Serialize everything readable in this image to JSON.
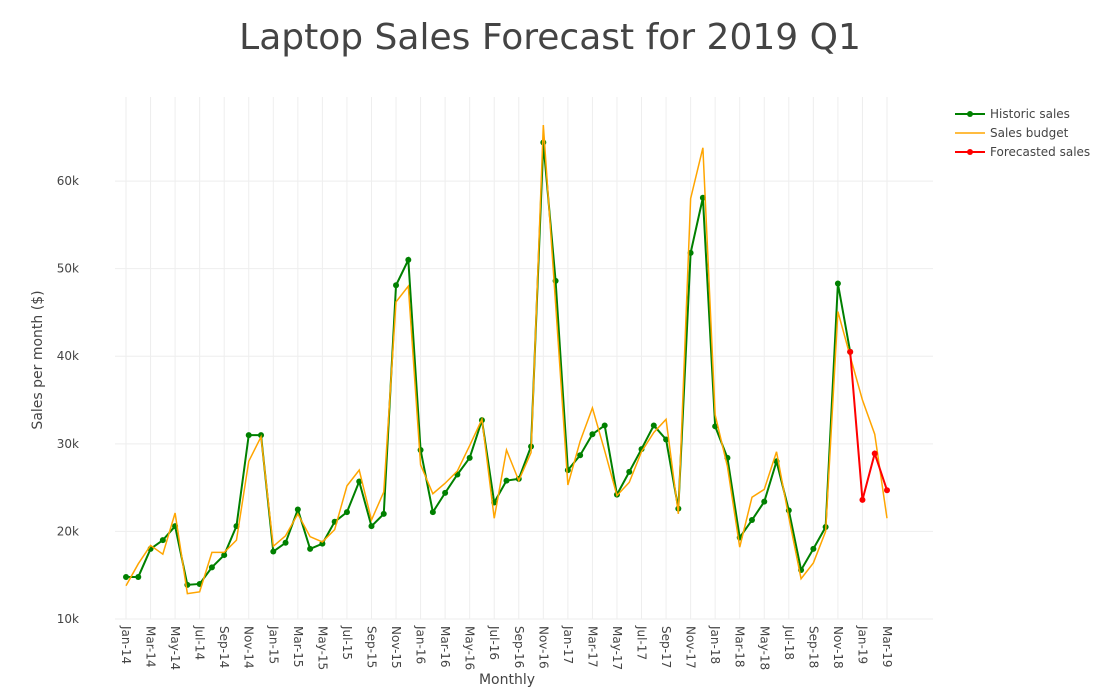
{
  "chart_data": {
    "type": "line",
    "title": "Laptop Sales Forecast for 2019 Q1",
    "x_label": "Monthly",
    "y_label": "Sales per month ($)",
    "categories": [
      "Jan-14",
      null,
      "Mar-14",
      null,
      "May-14",
      null,
      "Jul-14",
      null,
      "Sep-14",
      null,
      "Nov-14",
      null,
      "Jan-15",
      null,
      "Mar-15",
      null,
      "May-15",
      null,
      "Jul-15",
      null,
      "Sep-15",
      null,
      "Nov-15",
      null,
      "Jan-16",
      null,
      "Mar-16",
      null,
      "May-16",
      null,
      "Jul-16",
      null,
      "Sep-16",
      null,
      "Nov-16",
      null,
      "Jan-17",
      null,
      "Mar-17",
      null,
      "May-17",
      null,
      "Jul-17",
      null,
      "Sep-17",
      null,
      "Nov-17",
      null,
      "Jan-18",
      null,
      "Mar-18",
      null,
      "May-18",
      null,
      "Jul-18",
      null,
      "Sep-18",
      null,
      "Nov-18",
      null,
      "Jan-19",
      null,
      "Mar-19"
    ],
    "series": [
      {
        "name": "Historic sales",
        "color": "#008000",
        "markers": true,
        "values": [
          14800,
          14800,
          18000,
          19000,
          20600,
          13900,
          14000,
          15900,
          17300,
          20600,
          31000,
          31000,
          17700,
          18700,
          22500,
          18000,
          18600,
          21100,
          22200,
          25700,
          20600,
          22000,
          48100,
          51000,
          29300,
          22200,
          24400,
          26500,
          28400,
          32700,
          23300,
          25800,
          26000,
          29700,
          64400,
          48600,
          27000,
          28700,
          31100,
          32100,
          24200,
          26800,
          29400,
          32100,
          30500,
          22600,
          51800,
          58100,
          32000,
          28400,
          19300,
          21300,
          23400,
          28000,
          22400,
          15600,
          18000,
          20500,
          48300,
          40500,
          null,
          null,
          null
        ]
      },
      {
        "name": "Sales budget",
        "color": "#ffa500",
        "markers": false,
        "values": [
          13800,
          16300,
          18400,
          17400,
          22100,
          12900,
          13100,
          17600,
          17600,
          19000,
          28000,
          30800,
          18300,
          19500,
          22000,
          19400,
          18800,
          20200,
          25200,
          27000,
          21300,
          24500,
          46200,
          48000,
          27600,
          24300,
          25500,
          26900,
          29800,
          32800,
          21500,
          29300,
          25800,
          29000,
          66400,
          46000,
          25300,
          30300,
          34100,
          29200,
          24100,
          25600,
          29100,
          31300,
          32800,
          22000,
          58000,
          63800,
          33300,
          27400,
          18200,
          23900,
          24800,
          29100,
          21600,
          14600,
          16400,
          20000,
          45100,
          40000,
          35000,
          31100,
          21500
        ]
      },
      {
        "name": "Forecasted sales",
        "color": "#ff0000",
        "markers": true,
        "values": [
          null,
          null,
          null,
          null,
          null,
          null,
          null,
          null,
          null,
          null,
          null,
          null,
          null,
          null,
          null,
          null,
          null,
          null,
          null,
          null,
          null,
          null,
          null,
          null,
          null,
          null,
          null,
          null,
          null,
          null,
          null,
          null,
          null,
          null,
          null,
          null,
          null,
          null,
          null,
          null,
          null,
          null,
          null,
          null,
          null,
          null,
          null,
          null,
          null,
          null,
          null,
          null,
          null,
          null,
          null,
          null,
          null,
          null,
          null,
          40500,
          23600,
          28900,
          24700
        ]
      }
    ],
    "ylim": [
      10000,
      69600
    ],
    "yticks": [
      {
        "value": 10000,
        "label": "10k"
      },
      {
        "value": 20000,
        "label": "20k"
      },
      {
        "value": 30000,
        "label": "30k"
      },
      {
        "value": 40000,
        "label": "40k"
      },
      {
        "value": 50000,
        "label": "50k"
      },
      {
        "value": 60000,
        "label": "60k"
      }
    ],
    "grid": true,
    "legend": "top-right"
  }
}
